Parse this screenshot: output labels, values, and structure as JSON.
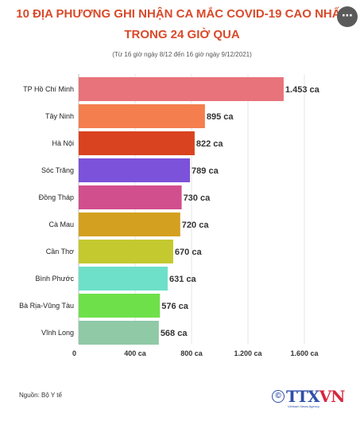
{
  "header": {
    "title_line1": "10 ĐỊA PHƯƠNG GHI NHẬN CA MẮC COVID-19 CAO NHẤT",
    "title_line2": "TRONG 24 GIỜ QUA",
    "subtitle": "(Từ 16 giờ ngày 8/12 đến 16 giờ ngày 9/12/2021)",
    "menu_icon": "more-dots-icon"
  },
  "chart_data": {
    "type": "bar",
    "orientation": "horizontal",
    "title": "10 ĐỊA PHƯƠNG GHI NHẬN CA MẮC COVID-19 CAO NHẤT TRONG 24 GIỜ QUA",
    "subtitle": "(Từ 16 giờ ngày 8/12 đến 16 giờ ngày 9/12/2021)",
    "categories": [
      "TP Hồ Chí Minh",
      "Tây Ninh",
      "Hà Nội",
      "Sóc Trăng",
      "Đồng Tháp",
      "Cà Mau",
      "Cần Thơ",
      "Bình Phước",
      "Bà Rịa-Vũng Tàu",
      "Vĩnh Long"
    ],
    "values": [
      1453,
      895,
      822,
      789,
      730,
      720,
      670,
      631,
      576,
      568
    ],
    "value_labels": [
      "1.453 ca",
      "895 ca",
      "822 ca",
      "789 ca",
      "730 ca",
      "720 ca",
      "670 ca",
      "631 ca",
      "576 ca",
      "568 ca"
    ],
    "colors": [
      "#e8737b",
      "#f47e4e",
      "#d9431f",
      "#7b52d9",
      "#d14f8c",
      "#d4a01f",
      "#c3c92e",
      "#6ee0c9",
      "#6ee04a",
      "#8fc9a6"
    ],
    "xticks": [
      0,
      400,
      800,
      1200,
      1600
    ],
    "xtick_labels": [
      "0",
      "400 ca",
      "800 ca",
      "1.200 ca",
      "1.600 ca"
    ],
    "xlim": [
      0,
      1600
    ],
    "grid": true,
    "xlabel": "",
    "ylabel": ""
  },
  "footer": {
    "source": "Nguồn: Bộ Y tế",
    "logo_text_a": "TTX",
    "logo_text_b": "VN",
    "logo_caption": "Vietnam News Agency"
  }
}
